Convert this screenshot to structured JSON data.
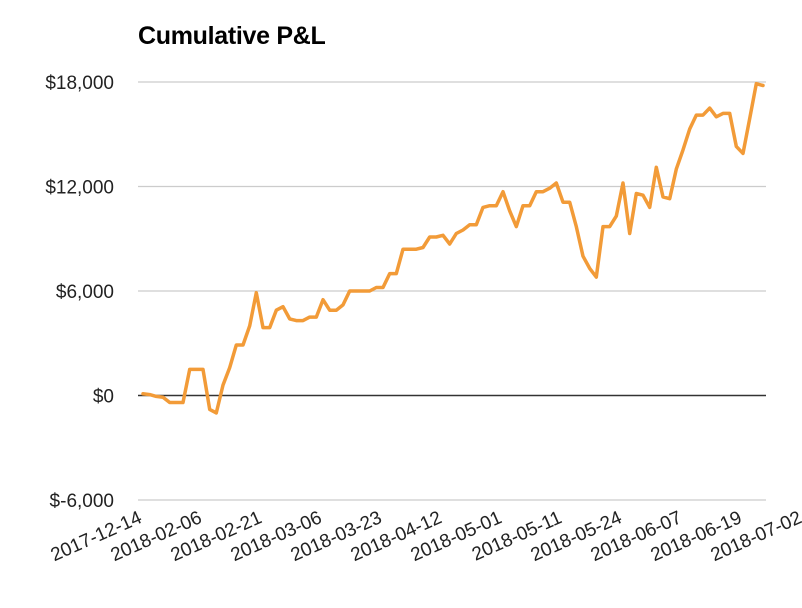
{
  "chart_data": {
    "type": "line",
    "title": "Cumulative P&L",
    "xlabel": "",
    "ylabel": "",
    "ylim": [
      -6000,
      18000
    ],
    "y_ticks": [
      -6000,
      0,
      6000,
      12000,
      18000
    ],
    "y_tick_labels": [
      "$-6,000",
      "$0",
      "$6,000",
      "$12,000",
      "$18,000"
    ],
    "x_tick_labels": [
      "2017-12-14",
      "2018-02-06",
      "2018-02-21",
      "2018-03-06",
      "2018-03-23",
      "2018-04-12",
      "2018-05-01",
      "2018-05-11",
      "2018-05-24",
      "2018-06-07",
      "2018-06-19",
      "2018-07-02"
    ],
    "x_tick_positions": [
      0,
      9,
      18,
      27,
      36,
      45,
      54,
      63,
      72,
      81,
      90,
      99
    ],
    "grid": true,
    "line_color": "#f29b38",
    "series": [
      {
        "values": [
          100,
          50,
          -50,
          -100,
          -400,
          -400,
          -400,
          1500,
          1500,
          1500,
          -800,
          -1000,
          600,
          1600,
          2900,
          2900,
          4000,
          5900,
          3900,
          3900,
          4900,
          5100,
          4400,
          4300,
          4300,
          4500,
          4500,
          5500,
          4900,
          4900,
          5200,
          6000,
          6000,
          6000,
          6000,
          6200,
          6200,
          7000,
          7000,
          8400,
          8400,
          8400,
          8500,
          9100,
          9100,
          9200,
          8700,
          9300,
          9500,
          9800,
          9800,
          10800,
          10900,
          10900,
          11700,
          10600,
          9700,
          10900,
          10900,
          11700,
          11700,
          11900,
          12200,
          11100,
          11100,
          9700,
          8000,
          7300,
          6800,
          9700,
          9700,
          10300,
          12200,
          9300,
          11600,
          11500,
          10800,
          13100,
          11400,
          11300,
          13000,
          14100,
          15300,
          16100,
          16100,
          16500,
          16000,
          16200,
          16200,
          14300,
          13900,
          15900,
          17900,
          17800
        ]
      }
    ]
  }
}
